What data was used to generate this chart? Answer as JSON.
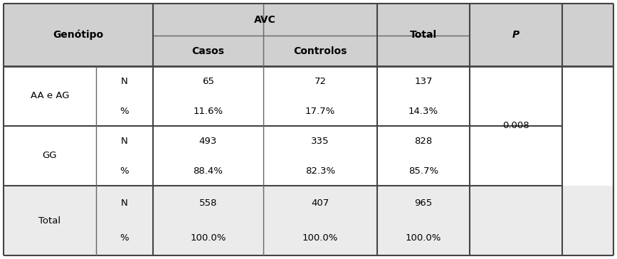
{
  "title_col1": "Genótipo",
  "title_avc": "AVC",
  "title_casos": "Casos",
  "title_controlos": "Controlos",
  "title_total": "Total",
  "title_p": "P",
  "row1_label": "AA e AG",
  "row1_N_casos": "65",
  "row1_N_controlos": "72",
  "row1_N_total": "137",
  "row1_pct_casos": "11.6%",
  "row1_pct_controlos": "17.7%",
  "row1_pct_total": "14.3%",
  "row2_label": "GG",
  "row2_N_casos": "493",
  "row2_N_controlos": "335",
  "row2_N_total": "828",
  "row2_pct_casos": "88.4%",
  "row2_pct_controlos": "82.3%",
  "row2_pct_total": "85.7%",
  "row3_label": "Total",
  "row3_N_casos": "558",
  "row3_N_controlos": "407",
  "row3_N_total": "965",
  "row3_pct_casos": "100.0%",
  "row3_pct_controlos": "100.0%",
  "row3_pct_total": "100.0%",
  "p_value": "0.008",
  "header_bg": "#d0d0d0",
  "total_row_bg": "#ebebeb",
  "white_bg": "#ffffff",
  "p_data_bg": "#ffffff",
  "p_total_bg": "#ebebeb",
  "border_color": "#666666",
  "border_thick": "#444444",
  "text_color": "#000000",
  "font_size_header": 10,
  "font_size_body": 9.5,
  "fig_width": 8.67,
  "fig_height": 3.64
}
